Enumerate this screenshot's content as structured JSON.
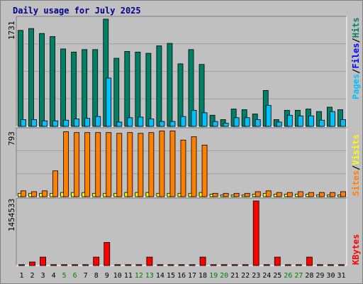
{
  "chart_data": {
    "type": "bar",
    "title": "Daily usage for July 2025",
    "days": [
      "1",
      "2",
      "3",
      "4",
      "5",
      "6",
      "7",
      "8",
      "9",
      "10",
      "11",
      "12",
      "13",
      "14",
      "15",
      "16",
      "17",
      "18",
      "19",
      "20",
      "21",
      "22",
      "23",
      "24",
      "25",
      "26",
      "27",
      "28",
      "29",
      "30",
      "31"
    ],
    "weekend_days": [
      "5",
      "6",
      "12",
      "13",
      "19",
      "20",
      "26",
      "27"
    ],
    "colors": {
      "hits": "#008066",
      "files": "#00c0ff",
      "pages": "#00ffff",
      "visits": "#ffff00",
      "sites": "#ff8000",
      "kbytes": "#ff0000",
      "weekend_label": "#008000",
      "weekday_label": "#000000",
      "title": "#00008b"
    },
    "panels": [
      {
        "name": "hits_files_pages",
        "max_label": "1731",
        "ylim": [
          0,
          1731
        ],
        "series": [
          {
            "name": "Hits",
            "color": "#008066",
            "values": [
              1550,
              1580,
              1500,
              1450,
              1250,
              1200,
              1240,
              1240,
              1731,
              1100,
              1210,
              1200,
              1180,
              1300,
              1340,
              1010,
              1240,
              1000,
              180,
              110,
              280,
              270,
              200,
              580,
              110,
              260,
              260,
              280,
              240,
              310,
              270
            ]
          },
          {
            "name": "Files",
            "color": "#00c0ff",
            "values": [
              110,
              110,
              90,
              90,
              100,
              120,
              130,
              160,
              780,
              70,
              140,
              150,
              120,
              80,
              80,
              160,
              260,
              220,
              80,
              50,
              140,
              140,
              110,
              340,
              70,
              180,
              170,
              170,
              100,
              240,
              110
            ]
          },
          {
            "name": "Pages",
            "color": "#00ffff",
            "values": [
              0,
              0,
              0,
              0,
              0,
              0,
              0,
              0,
              0,
              0,
              0,
              0,
              0,
              0,
              0,
              0,
              0,
              0,
              0,
              0,
              0,
              0,
              0,
              0,
              0,
              0,
              0,
              0,
              0,
              0,
              0
            ]
          }
        ]
      },
      {
        "name": "sites_visits",
        "max_label": "793",
        "ylim": [
          0,
          793
        ],
        "series": [
          {
            "name": "Visits",
            "color": "#ffff00",
            "values": [
              40,
              40,
              40,
              40,
              50,
              50,
              50,
              40,
              40,
              40,
              50,
              50,
              50,
              40,
              40,
              40,
              40,
              50,
              30,
              20,
              20,
              20,
              30,
              40,
              30,
              30,
              30,
              30,
              20,
              20,
              20
            ]
          },
          {
            "name": "Sites",
            "color": "#ff8000",
            "values": [
              70,
              60,
              70,
              310,
              780,
              770,
              770,
              770,
              770,
              760,
              770,
              760,
              770,
              790,
              790,
              680,
              720,
              620,
              40,
              40,
              40,
              40,
              60,
              70,
              50,
              50,
              60,
              50,
              50,
              50,
              60
            ]
          }
        ]
      },
      {
        "name": "kbytes",
        "max_label": "1454533",
        "ylim": [
          0,
          1454533
        ],
        "series": [
          {
            "name": "KBytes",
            "color": "#ff0000",
            "values": [
              20000,
              80000,
              190000,
              20000,
              20000,
              20000,
              20000,
              190000,
              520000,
              20000,
              20000,
              20000,
              190000,
              20000,
              20000,
              20000,
              20000,
              190000,
              20000,
              20000,
              20000,
              20000,
              1454533,
              20000,
              190000,
              20000,
              20000,
              190000,
              20000,
              20000,
              20000
            ]
          }
        ]
      }
    ],
    "right_labels": {
      "top": [
        {
          "text": "Pages",
          "color": "#00c0ff"
        },
        {
          "text": "/",
          "color": "#000000"
        },
        {
          "text": "Files",
          "color": "#0000ff"
        },
        {
          "text": "/",
          "color": "#000000"
        },
        {
          "text": "Hits",
          "color": "#008066"
        }
      ],
      "middle": [
        {
          "text": "Sites",
          "color": "#ff8000"
        },
        {
          "text": "/",
          "color": "#000000"
        },
        {
          "text": "Visits",
          "color": "#ffff00"
        }
      ],
      "bottom": [
        {
          "text": "KBytes",
          "color": "#ff0000"
        }
      ]
    }
  }
}
